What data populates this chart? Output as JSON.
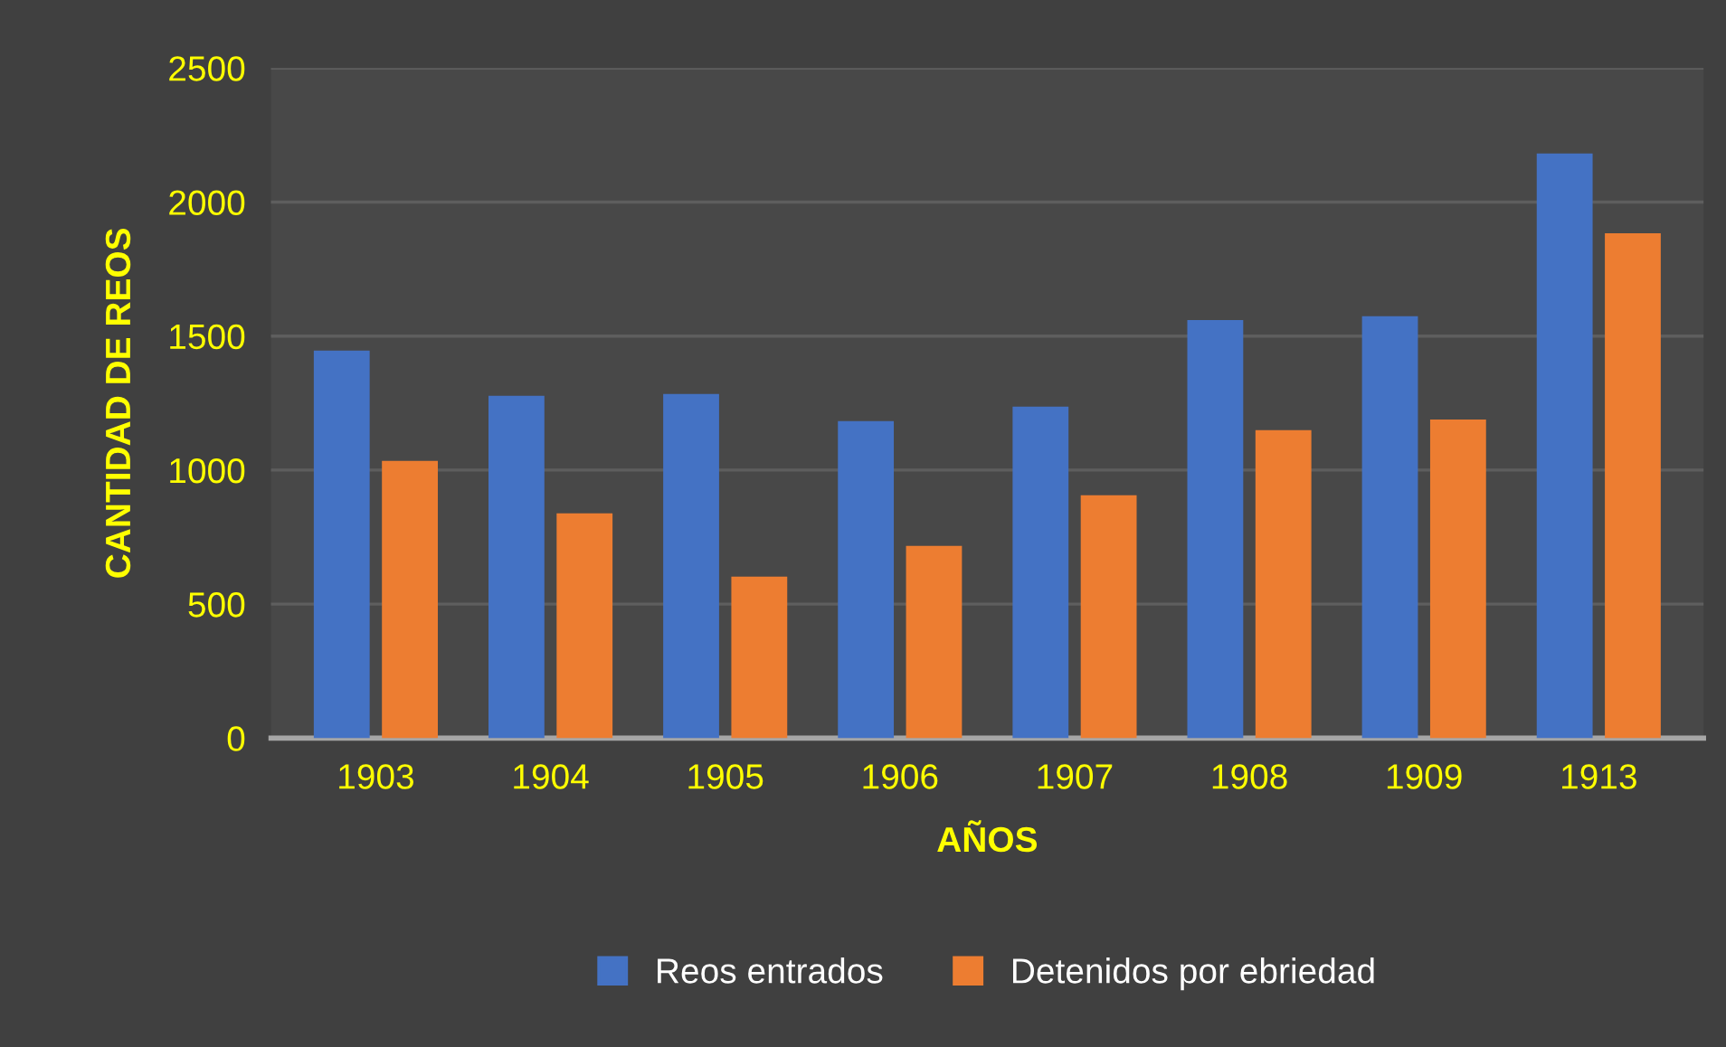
{
  "chart_data": {
    "type": "bar",
    "xlabel": "AÑOS",
    "ylabel": "CANTIDAD DE REOS",
    "categories": [
      "1903",
      "1904",
      "1905",
      "1906",
      "1907",
      "1908",
      "1909",
      "1913"
    ],
    "series": [
      {
        "name": "Reos entrados",
        "color": "#4472c4",
        "values": [
          1446,
          1277,
          1284,
          1183,
          1237,
          1560,
          1574,
          2181
        ]
      },
      {
        "name": "Detenidos por ebriedad",
        "color": "#ed7d31",
        "values": [
          1034,
          839,
          603,
          717,
          906,
          1149,
          1189,
          1884
        ]
      }
    ],
    "ylim": [
      0,
      2500
    ],
    "yticks": [
      0,
      500,
      1000,
      1500,
      2000,
      2500
    ],
    "grid": "y",
    "legend": "bottom"
  }
}
